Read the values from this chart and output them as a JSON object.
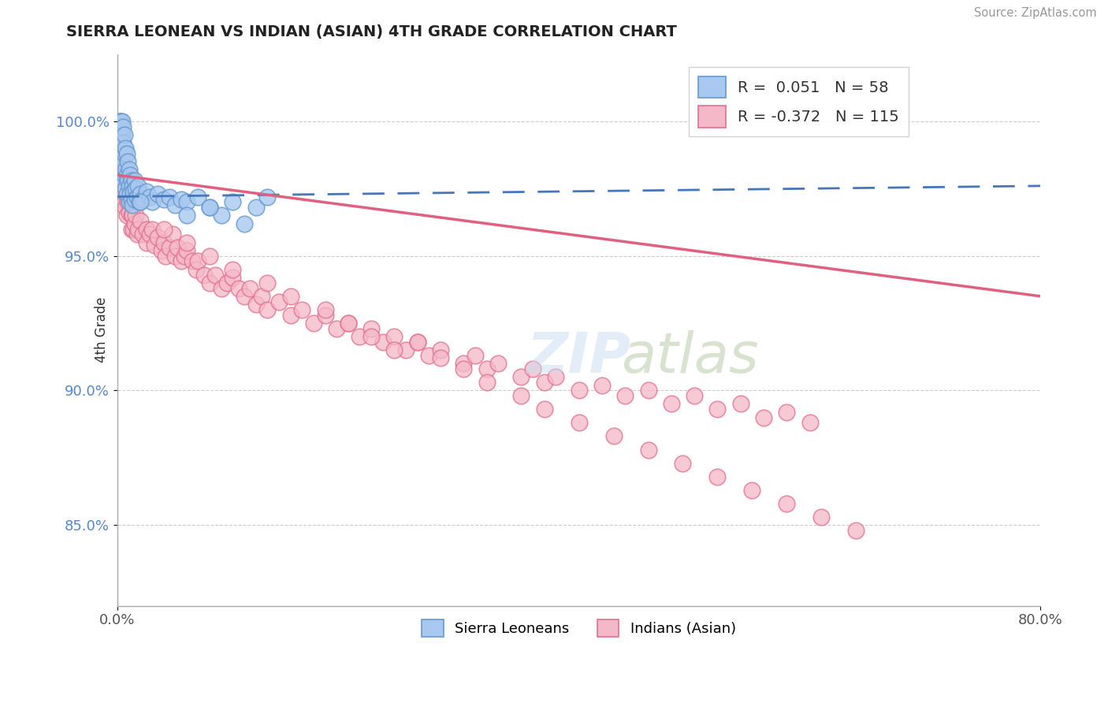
{
  "title": "SIERRA LEONEAN VS INDIAN (ASIAN) 4TH GRADE CORRELATION CHART",
  "source": "Source: ZipAtlas.com",
  "ylabel_label": "4th Grade",
  "ylabel_ticks": [
    85.0,
    90.0,
    95.0,
    100.0
  ],
  "xlim": [
    0.0,
    0.8
  ],
  "ylim": [
    82.0,
    102.5
  ],
  "blue_R": 0.051,
  "blue_N": 58,
  "pink_R": -0.372,
  "pink_N": 115,
  "blue_color": "#A8C8F0",
  "blue_edge": "#6699CC",
  "pink_color": "#F5B8C8",
  "pink_edge": "#E07090",
  "trend_blue_color": "#4477BB",
  "trend_pink_color": "#E06080",
  "legend_blue_box": "#A8C8F0",
  "legend_pink_box": "#F5B8C8",
  "blue_x": [
    0.002,
    0.003,
    0.003,
    0.004,
    0.004,
    0.004,
    0.005,
    0.005,
    0.005,
    0.005,
    0.006,
    0.006,
    0.006,
    0.007,
    0.007,
    0.007,
    0.008,
    0.008,
    0.008,
    0.009,
    0.009,
    0.01,
    0.01,
    0.01,
    0.011,
    0.011,
    0.012,
    0.012,
    0.013,
    0.013,
    0.014,
    0.015,
    0.015,
    0.016,
    0.017,
    0.018,
    0.019,
    0.02,
    0.022,
    0.025,
    0.028,
    0.03,
    0.035,
    0.04,
    0.045,
    0.05,
    0.055,
    0.06,
    0.07,
    0.08,
    0.09,
    0.1,
    0.11,
    0.12,
    0.02,
    0.06,
    0.08,
    0.13
  ],
  "blue_y": [
    100.0,
    100.0,
    100.0,
    100.0,
    99.5,
    98.8,
    99.8,
    99.2,
    98.5,
    97.8,
    99.5,
    98.8,
    98.0,
    99.0,
    98.2,
    97.5,
    98.8,
    98.0,
    97.3,
    98.5,
    97.8,
    98.2,
    97.6,
    97.0,
    98.0,
    97.3,
    97.8,
    97.1,
    97.6,
    96.9,
    97.4,
    97.8,
    97.1,
    97.5,
    97.2,
    97.6,
    97.0,
    97.3,
    97.1,
    97.4,
    97.2,
    97.0,
    97.3,
    97.1,
    97.2,
    96.9,
    97.1,
    97.0,
    97.2,
    96.8,
    96.5,
    97.0,
    96.2,
    96.8,
    97.0,
    96.5,
    96.8,
    97.2
  ],
  "pink_x": [
    0.003,
    0.004,
    0.004,
    0.005,
    0.005,
    0.006,
    0.006,
    0.007,
    0.007,
    0.008,
    0.008,
    0.009,
    0.01,
    0.01,
    0.011,
    0.012,
    0.012,
    0.013,
    0.014,
    0.015,
    0.016,
    0.017,
    0.018,
    0.02,
    0.022,
    0.025,
    0.025,
    0.028,
    0.03,
    0.032,
    0.035,
    0.038,
    0.04,
    0.042,
    0.045,
    0.048,
    0.05,
    0.052,
    0.055,
    0.058,
    0.06,
    0.065,
    0.068,
    0.07,
    0.075,
    0.08,
    0.085,
    0.09,
    0.095,
    0.1,
    0.105,
    0.11,
    0.115,
    0.12,
    0.125,
    0.13,
    0.14,
    0.15,
    0.16,
    0.17,
    0.18,
    0.19,
    0.2,
    0.21,
    0.22,
    0.23,
    0.24,
    0.25,
    0.26,
    0.27,
    0.28,
    0.3,
    0.31,
    0.32,
    0.33,
    0.35,
    0.36,
    0.37,
    0.38,
    0.4,
    0.42,
    0.44,
    0.46,
    0.48,
    0.5,
    0.52,
    0.54,
    0.56,
    0.58,
    0.6,
    0.04,
    0.06,
    0.08,
    0.1,
    0.13,
    0.15,
    0.18,
    0.2,
    0.22,
    0.24,
    0.26,
    0.28,
    0.3,
    0.32,
    0.35,
    0.37,
    0.4,
    0.43,
    0.46,
    0.49,
    0.52,
    0.55,
    0.58,
    0.61,
    0.64
  ],
  "pink_y": [
    98.5,
    98.0,
    97.5,
    98.2,
    97.5,
    97.8,
    97.0,
    97.5,
    96.8,
    97.2,
    96.5,
    97.0,
    97.3,
    96.6,
    97.0,
    96.5,
    96.0,
    96.5,
    96.0,
    96.2,
    96.5,
    95.8,
    96.0,
    96.3,
    95.8,
    96.0,
    95.5,
    95.8,
    96.0,
    95.4,
    95.7,
    95.2,
    95.5,
    95.0,
    95.3,
    95.8,
    95.0,
    95.3,
    94.8,
    95.0,
    95.2,
    94.8,
    94.5,
    94.8,
    94.3,
    94.0,
    94.3,
    93.8,
    94.0,
    94.2,
    93.8,
    93.5,
    93.8,
    93.2,
    93.5,
    93.0,
    93.3,
    92.8,
    93.0,
    92.5,
    92.8,
    92.3,
    92.5,
    92.0,
    92.3,
    91.8,
    92.0,
    91.5,
    91.8,
    91.3,
    91.5,
    91.0,
    91.3,
    90.8,
    91.0,
    90.5,
    90.8,
    90.3,
    90.5,
    90.0,
    90.2,
    89.8,
    90.0,
    89.5,
    89.8,
    89.3,
    89.5,
    89.0,
    89.2,
    88.8,
    96.0,
    95.5,
    95.0,
    94.5,
    94.0,
    93.5,
    93.0,
    92.5,
    92.0,
    91.5,
    91.8,
    91.2,
    90.8,
    90.3,
    89.8,
    89.3,
    88.8,
    88.3,
    87.8,
    87.3,
    86.8,
    86.3,
    85.8,
    85.3,
    84.8
  ],
  "blue_trend_x0": 0.0,
  "blue_trend_x1": 0.8,
  "blue_trend_y0": 97.2,
  "blue_trend_y1": 97.6,
  "pink_trend_x0": 0.0,
  "pink_trend_x1": 0.8,
  "pink_trend_y0": 98.0,
  "pink_trend_y1": 93.5
}
